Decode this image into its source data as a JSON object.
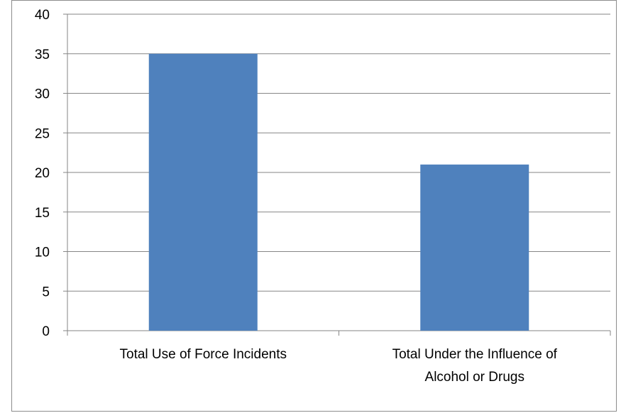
{
  "chart_data": {
    "type": "bar",
    "categories": [
      [
        "Total Use of Force Incidents"
      ],
      [
        "Total Under the Influence of",
        "Alcohol or Drugs"
      ]
    ],
    "values": [
      35,
      21
    ],
    "ylim": [
      0,
      40
    ],
    "yticks": [
      0,
      5,
      10,
      15,
      20,
      25,
      30,
      35,
      40
    ],
    "grid": true,
    "legend": "none",
    "bar_color": "#4f81bd",
    "grid_color": "#868686"
  }
}
